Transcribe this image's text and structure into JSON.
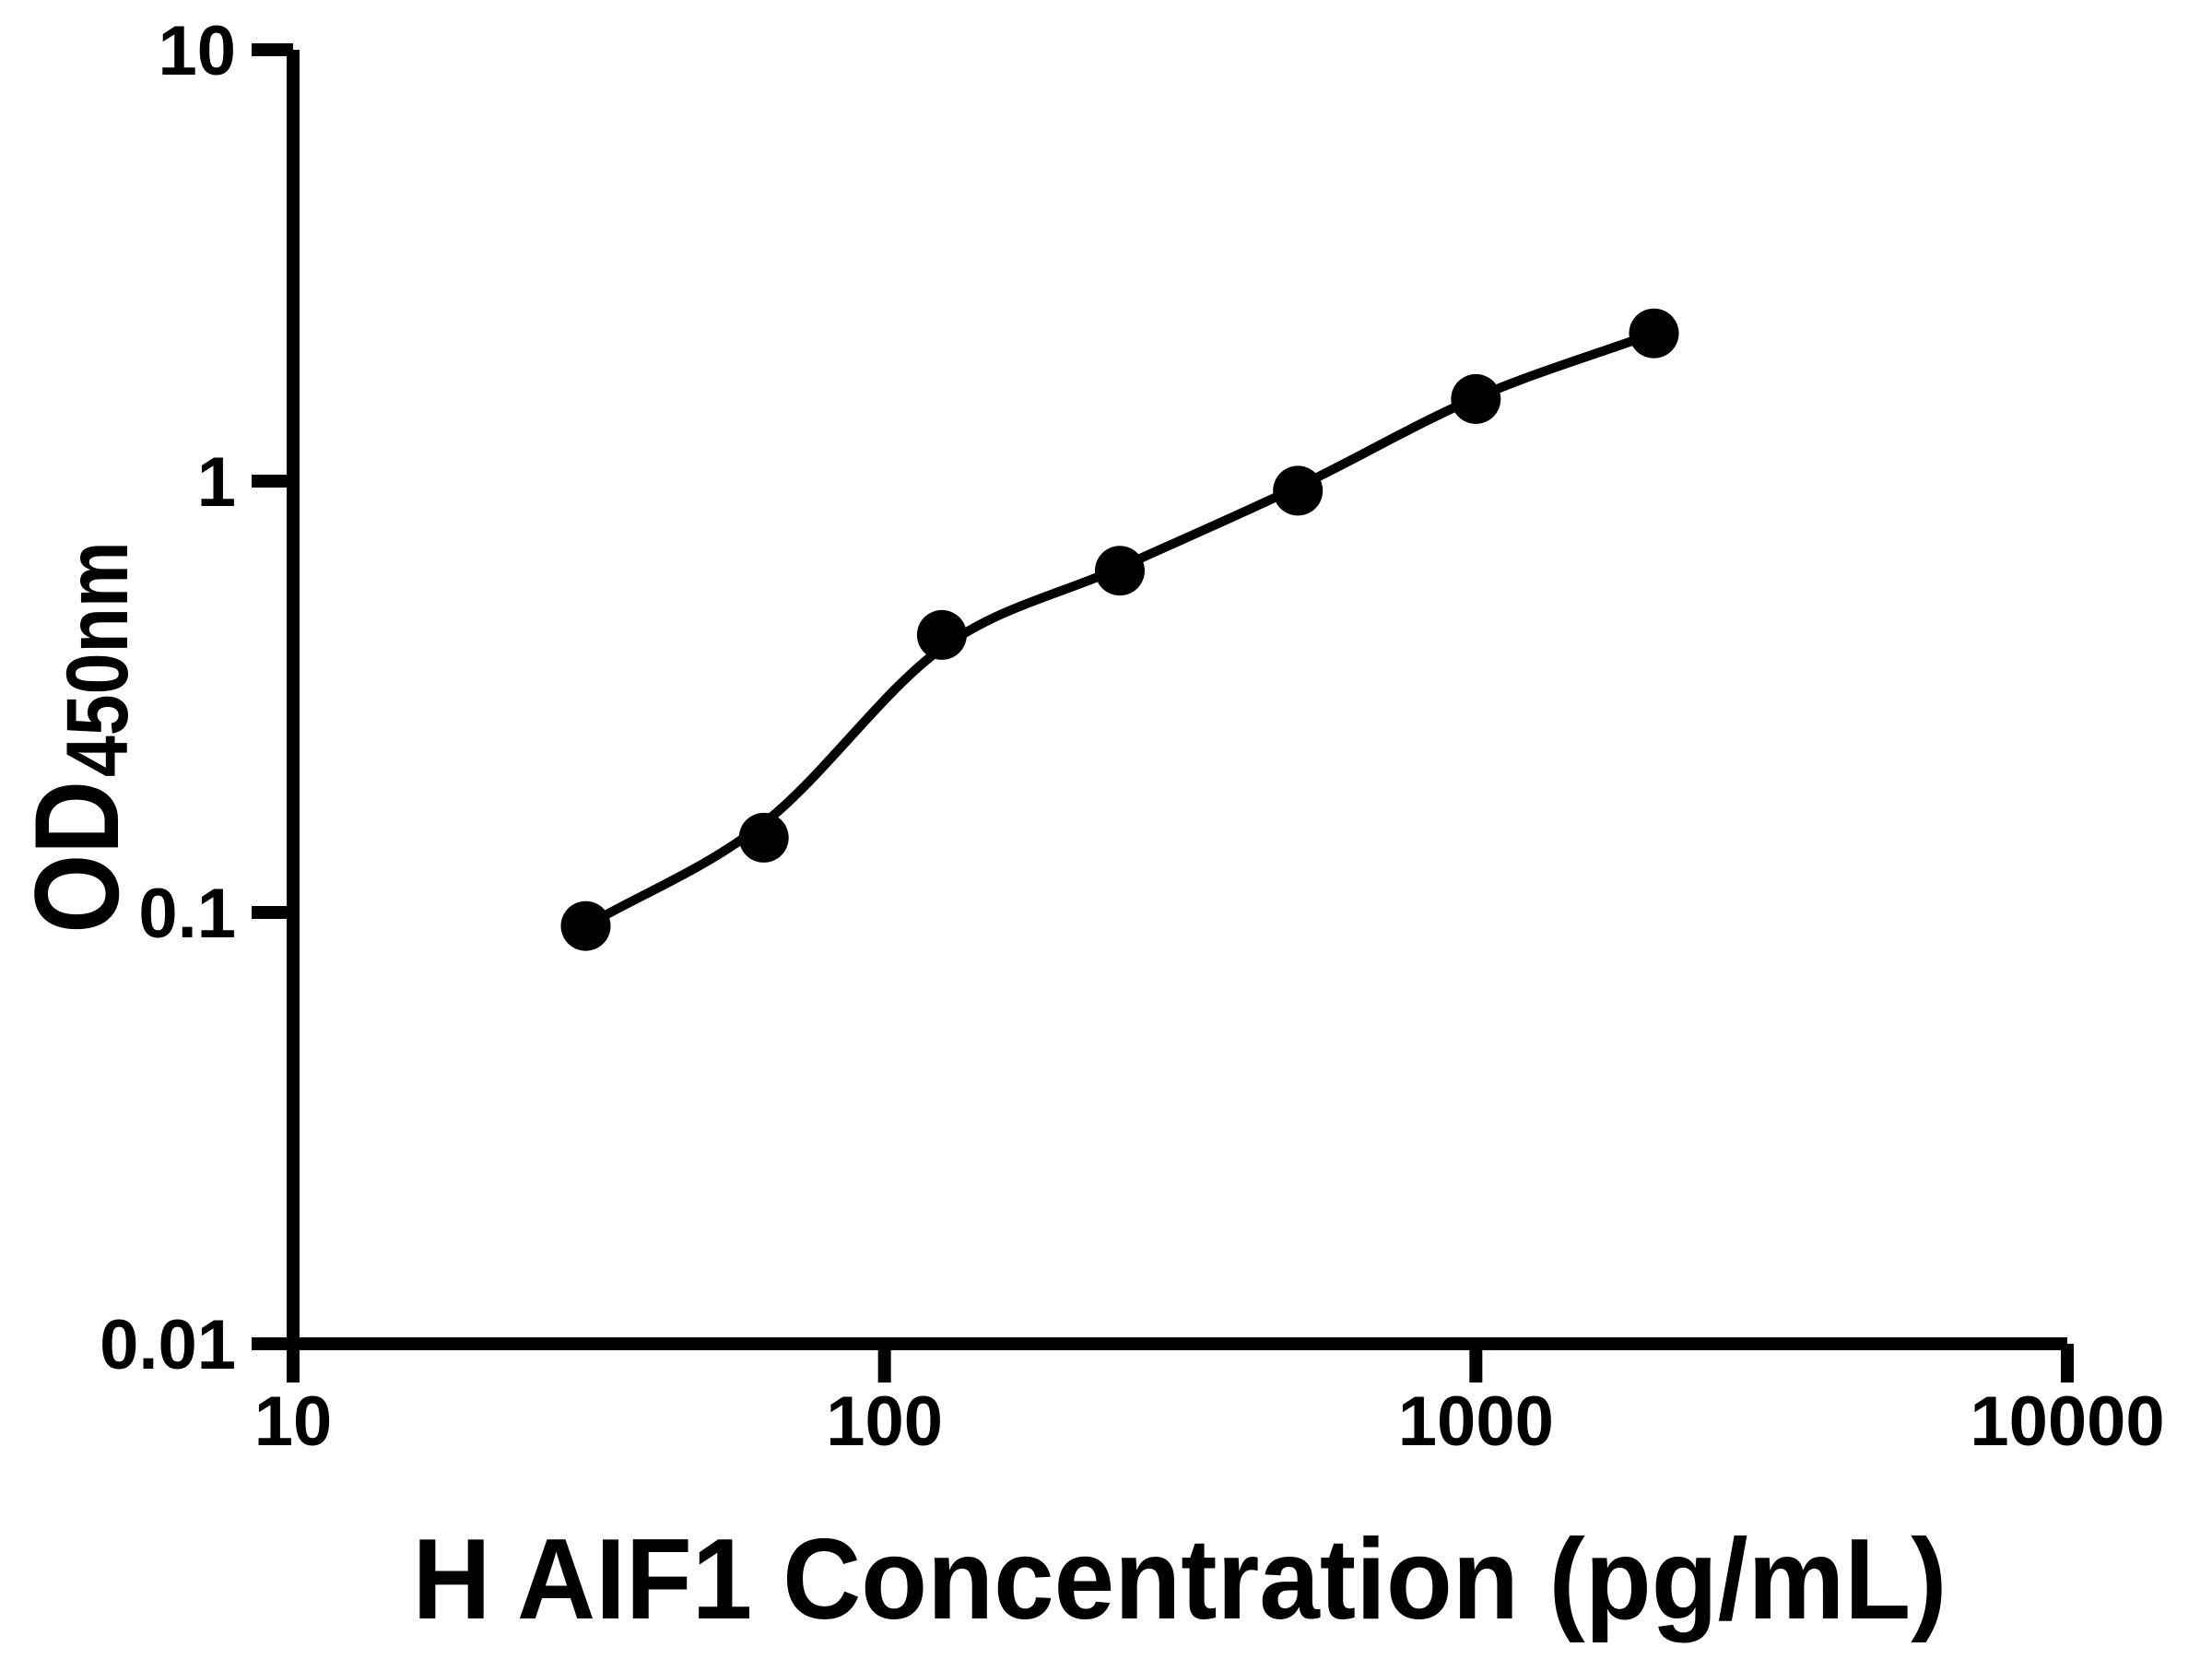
{
  "figure": {
    "background_color": "#ffffff",
    "ink_color": "#000000"
  },
  "chart_data": {
    "type": "scatter",
    "title": "",
    "xlabel": "H AIF1 Concentration (pg/mL)",
    "ylabel": "OD",
    "ylabel_subscript": "450nm",
    "x_scale": "log",
    "y_scale": "log",
    "xlim": [
      10,
      10000
    ],
    "ylim": [
      0.01,
      10
    ],
    "grid": false,
    "legend": "none",
    "x_ticks": [
      {
        "value": 10,
        "label": "10"
      },
      {
        "value": 100,
        "label": "100"
      },
      {
        "value": 1000,
        "label": "1000"
      },
      {
        "value": 10000,
        "label": "10000"
      }
    ],
    "y_ticks": [
      {
        "value": 10,
        "label": "10"
      },
      {
        "value": 1,
        "label": "1"
      },
      {
        "value": 0.1,
        "label": "0.1"
      },
      {
        "value": 0.01,
        "label": "0.01"
      }
    ],
    "points": {
      "name": "standard-dilution-points",
      "marker": "circle",
      "color": "#000000",
      "x": [
        31.25,
        62.5,
        125,
        250,
        500,
        1000,
        2000
      ],
      "od": [
        0.093,
        0.149,
        0.44,
        0.62,
        0.95,
        1.55,
        2.2
      ]
    },
    "fit_curve": {
      "name": "standard-curve-fit",
      "color": "#000000",
      "x": [
        31.25,
        62.5,
        125,
        250,
        500,
        1000,
        2000
      ],
      "od": [
        0.093,
        0.161,
        0.41,
        0.63,
        0.97,
        1.56,
        2.2
      ]
    }
  }
}
